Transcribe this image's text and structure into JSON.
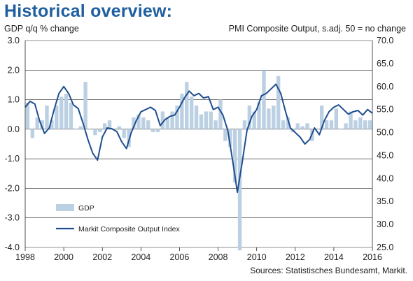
{
  "title": "Historical overview:",
  "source": "Sources: Statistisches Bundesamt, Markit.",
  "colors": {
    "gdp_bar": "#bcd0e3",
    "pmi_line": "#1f4e8f",
    "title": "#1f5fa0",
    "grid": "#222222"
  },
  "chart_data": {
    "type": "bar+line",
    "ylabel_left": "GDP q/q % change",
    "ylabel_right": "PMI Composite  Output,  s.adj. 50 = no change",
    "ylim_left": [
      -4.0,
      3.0
    ],
    "ylim_right": [
      25.0,
      70.0
    ],
    "left_ticks": [
      "3.0",
      "2.0",
      "1.0",
      "0.0",
      "-1.0",
      "-2.0",
      "-3.0",
      "-4.0"
    ],
    "right_ticks": [
      "70.0",
      "65.0",
      "60.0",
      "55.0",
      "50.0",
      "45.0",
      "40.0",
      "35.0",
      "30.0",
      "25.0"
    ],
    "x_ticks": [
      "1998",
      "2000",
      "2002",
      "2004",
      "2006",
      "2008",
      "2010",
      "2012",
      "2014",
      "2016"
    ],
    "xlim": [
      1998.0,
      2016.0
    ],
    "legend_position": "bottom-left",
    "series": [
      {
        "name": "GDP",
        "kind": "bar",
        "axis": "left",
        "x": [
          1998.0,
          1998.25,
          1998.5,
          1998.75,
          1999.0,
          1999.25,
          1999.5,
          1999.75,
          2000.0,
          2000.25,
          2000.5,
          2000.75,
          2001.0,
          2001.25,
          2001.5,
          2001.75,
          2002.0,
          2002.25,
          2002.5,
          2002.75,
          2003.0,
          2003.25,
          2003.5,
          2003.75,
          2004.0,
          2004.25,
          2004.5,
          2004.75,
          2005.0,
          2005.25,
          2005.5,
          2005.75,
          2006.0,
          2006.25,
          2006.5,
          2006.75,
          2007.0,
          2007.25,
          2007.5,
          2007.75,
          2008.0,
          2008.25,
          2008.5,
          2008.75,
          2009.0,
          2009.25,
          2009.5,
          2009.75,
          2010.0,
          2010.25,
          2010.5,
          2010.75,
          2011.0,
          2011.25,
          2011.5,
          2011.75,
          2012.0,
          2012.25,
          2012.5,
          2012.75,
          2013.0,
          2013.25,
          2013.5,
          2013.75,
          2014.0,
          2014.25,
          2014.5,
          2014.75,
          2015.0,
          2015.25,
          2015.5,
          2015.75
        ],
        "values": [
          0.9,
          -0.3,
          0.4,
          0.3,
          0.8,
          0.3,
          0.8,
          1.1,
          1.2,
          0.9,
          0.0,
          0.1,
          1.6,
          0.0,
          -0.2,
          -0.1,
          0.2,
          0.3,
          0.0,
          0.1,
          -0.3,
          -0.6,
          0.4,
          0.5,
          0.4,
          0.3,
          -0.1,
          -0.1,
          0.6,
          0.4,
          0.6,
          0.8,
          1.2,
          1.6,
          1.1,
          0.8,
          0.5,
          0.6,
          0.6,
          0.3,
          1.0,
          -0.4,
          -0.6,
          -1.8,
          -4.1,
          0.3,
          0.8,
          0.6,
          0.9,
          2.0,
          0.7,
          0.8,
          1.8,
          0.3,
          0.4,
          -0.1,
          0.2,
          0.1,
          0.2,
          -0.4,
          0.0,
          0.8,
          0.3,
          0.3,
          0.7,
          0.0,
          0.2,
          0.6,
          0.3,
          0.4,
          0.3,
          0.3
        ]
      },
      {
        "name": "Markit Composite Output Index",
        "kind": "line",
        "axis": "right",
        "x": [
          1998.0,
          1998.25,
          1998.5,
          1998.75,
          1999.0,
          1999.25,
          1999.5,
          1999.75,
          2000.0,
          2000.25,
          2000.5,
          2000.75,
          2001.0,
          2001.25,
          2001.5,
          2001.75,
          2002.0,
          2002.25,
          2002.5,
          2002.75,
          2003.0,
          2003.25,
          2003.5,
          2003.75,
          2004.0,
          2004.25,
          2004.5,
          2004.75,
          2005.0,
          2005.25,
          2005.5,
          2005.75,
          2006.0,
          2006.25,
          2006.5,
          2006.75,
          2007.0,
          2007.25,
          2007.5,
          2007.75,
          2008.0,
          2008.25,
          2008.5,
          2008.75,
          2009.0,
          2009.25,
          2009.5,
          2009.75,
          2010.0,
          2010.25,
          2010.5,
          2010.75,
          2011.0,
          2011.25,
          2011.5,
          2011.75,
          2012.0,
          2012.25,
          2012.5,
          2012.75,
          2013.0,
          2013.25,
          2013.5,
          2013.75,
          2014.0,
          2014.25,
          2014.5,
          2014.75,
          2015.0,
          2015.25,
          2015.5,
          2015.75,
          2016.0
        ],
        "values": [
          55.5,
          56.8,
          56.2,
          52.5,
          49.8,
          51.0,
          55.0,
          58.5,
          60.0,
          58.5,
          56.0,
          55.2,
          52.0,
          48.5,
          45.5,
          44.0,
          49.0,
          51.0,
          50.8,
          50.2,
          48.0,
          46.5,
          50.0,
          52.5,
          54.5,
          55.0,
          55.5,
          54.8,
          51.5,
          52.8,
          53.5,
          53.8,
          55.5,
          57.5,
          59.0,
          58.0,
          58.5,
          57.5,
          57.8,
          55.0,
          55.5,
          53.8,
          50.5,
          44.0,
          37.0,
          43.5,
          50.5,
          53.5,
          55.0,
          58.0,
          58.5,
          59.5,
          60.5,
          58.5,
          54.5,
          51.0,
          50.0,
          49.0,
          47.5,
          48.5,
          51.0,
          49.5,
          52.5,
          54.5,
          55.5,
          56.0,
          55.0,
          54.0,
          54.5,
          54.8,
          53.8,
          55.0,
          54.2
        ]
      }
    ]
  }
}
